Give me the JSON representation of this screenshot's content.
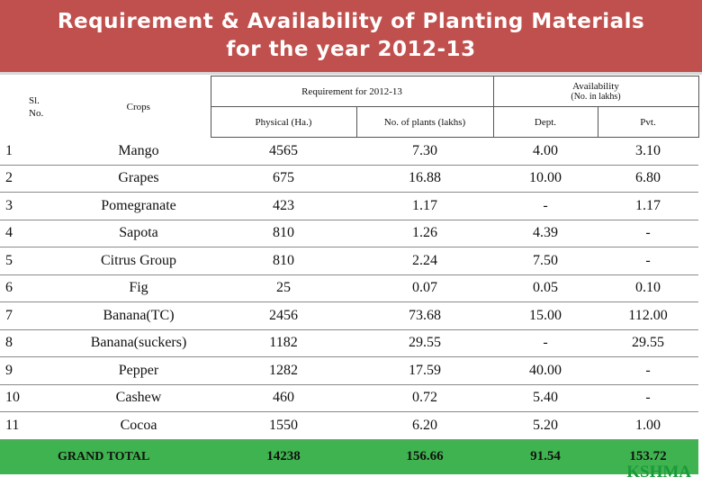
{
  "title": {
    "line1": "Requirement & Availability of Planting Materials",
    "line2": "for the year 2012-13"
  },
  "headers": {
    "sl": "Sl. No.",
    "crops": "Crops",
    "requirement": "Requirement for 2012-13",
    "availability": "Availability",
    "availability_unit": "(No. in lakhs)",
    "physical": "Physical (Ha.)",
    "plants": "No. of plants (lakhs)",
    "dept": "Dept.",
    "pvt": "Pvt."
  },
  "rows": [
    {
      "sl": "1",
      "crop": "Mango",
      "physical": "4565",
      "plants": "7.30",
      "dept": "4.00",
      "pvt": "3.10"
    },
    {
      "sl": "2",
      "crop": "Grapes",
      "physical": "675",
      "plants": "16.88",
      "dept": "10.00",
      "pvt": "6.80"
    },
    {
      "sl": "3",
      "crop": "Pomegranate",
      "physical": "423",
      "plants": "1.17",
      "dept": "-",
      "pvt": "1.17"
    },
    {
      "sl": "4",
      "crop": "Sapota",
      "physical": "810",
      "plants": "1.26",
      "dept": "4.39",
      "pvt": "-"
    },
    {
      "sl": "5",
      "crop": "Citrus Group",
      "physical": "810",
      "plants": "2.24",
      "dept": "7.50",
      "pvt": "-"
    },
    {
      "sl": "6",
      "crop": "Fig",
      "physical": "25",
      "plants": "0.07",
      "dept": "0.05",
      "pvt": "0.10"
    },
    {
      "sl": "7",
      "crop": "Banana(TC)",
      "physical": "2456",
      "plants": "73.68",
      "dept": "15.00",
      "pvt": "112.00"
    },
    {
      "sl": "8",
      "crop": "Banana(suckers)",
      "physical": "1182",
      "plants": "29.55",
      "dept": "-",
      "pvt": "29.55"
    },
    {
      "sl": "9",
      "crop": "Pepper",
      "physical": "1282",
      "plants": "17.59",
      "dept": "40.00",
      "pvt": "-"
    },
    {
      "sl": "10",
      "crop": "Cashew",
      "physical": "460",
      "plants": "0.72",
      "dept": "5.40",
      "pvt": "-"
    },
    {
      "sl": "11",
      "crop": "Cocoa",
      "physical": "1550",
      "plants": "6.20",
      "dept": "5.20",
      "pvt": "1.00"
    }
  ],
  "total": {
    "label": "GRAND TOTAL",
    "physical": "14238",
    "plants": "156.66",
    "dept": "91.54",
    "pvt": "153.72"
  },
  "brand": "KSHMA",
  "colors": {
    "title_band": "#c0504d",
    "total_row": "#3fb34f",
    "brand": "#1a9a3a"
  }
}
